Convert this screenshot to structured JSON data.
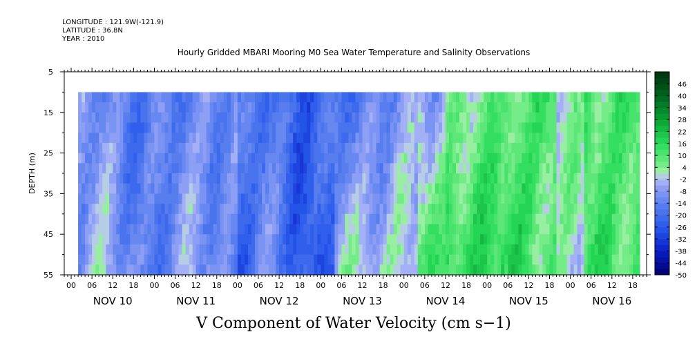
{
  "header": {
    "longitude": "LONGITUDE : 121.9W(-121.9)",
    "latitude": "LATITUDE : 36.8N",
    "year": "YEAR : 2010"
  },
  "chart_data": {
    "type": "heatmap",
    "title": "Hourly Gridded MBARI Mooring M0 Sea Water Temperature and Salinity Observations",
    "xlabel": "V Component of Water Velocity (cm s−1)",
    "ylabel": "DEPTH (m)",
    "y_ticks": [
      "5",
      "15",
      "25",
      "35",
      "45",
      "55"
    ],
    "y_range": [
      5,
      55
    ],
    "y_inverted": true,
    "data_depth_range": [
      10,
      55
    ],
    "x_hour_ticks": [
      "00",
      "06",
      "12",
      "18",
      "00",
      "06",
      "12",
      "18",
      "00",
      "06",
      "12",
      "18",
      "00",
      "06",
      "12",
      "18",
      "00",
      "06",
      "12",
      "18",
      "00",
      "06",
      "12",
      "18",
      "00",
      "06",
      "12",
      "18"
    ],
    "x_day_labels": [
      "NOV 10",
      "NOV 11",
      "NOV 12",
      "NOV 13",
      "NOV 14",
      "NOV 15",
      "NOV 16"
    ],
    "x_range_hours_from_nov10_00": [
      -2,
      166
    ],
    "data_start_hour": 2,
    "data_end_hour": 164,
    "colorbar": {
      "labels": [
        "46",
        "40",
        "34",
        "28",
        "22",
        "16",
        "10",
        "4",
        "-2",
        "-8",
        "-14",
        "-20",
        "-26",
        "-32",
        "-38",
        "-44",
        "-50"
      ],
      "min": -50,
      "max": 52,
      "step": 3
    },
    "pattern": [
      {
        "day": "NOV 10",
        "velocity": "negative, -20 to -8 (blue)"
      },
      {
        "day": "NOV 11",
        "velocity": "negative, down to about -26"
      },
      {
        "day": "NOV 12",
        "velocity": "negative, down to about -26"
      },
      {
        "day": "NOV 13",
        "velocity": "negative near surface, weakly positive at depth"
      },
      {
        "day": "NOV 14",
        "velocity": "mostly positive, 4 to 16 (green)"
      },
      {
        "day": "NOV 15",
        "velocity": "positive, up to about 22"
      },
      {
        "day": "NOV 16",
        "velocity": "positive, up to about 22"
      }
    ]
  }
}
